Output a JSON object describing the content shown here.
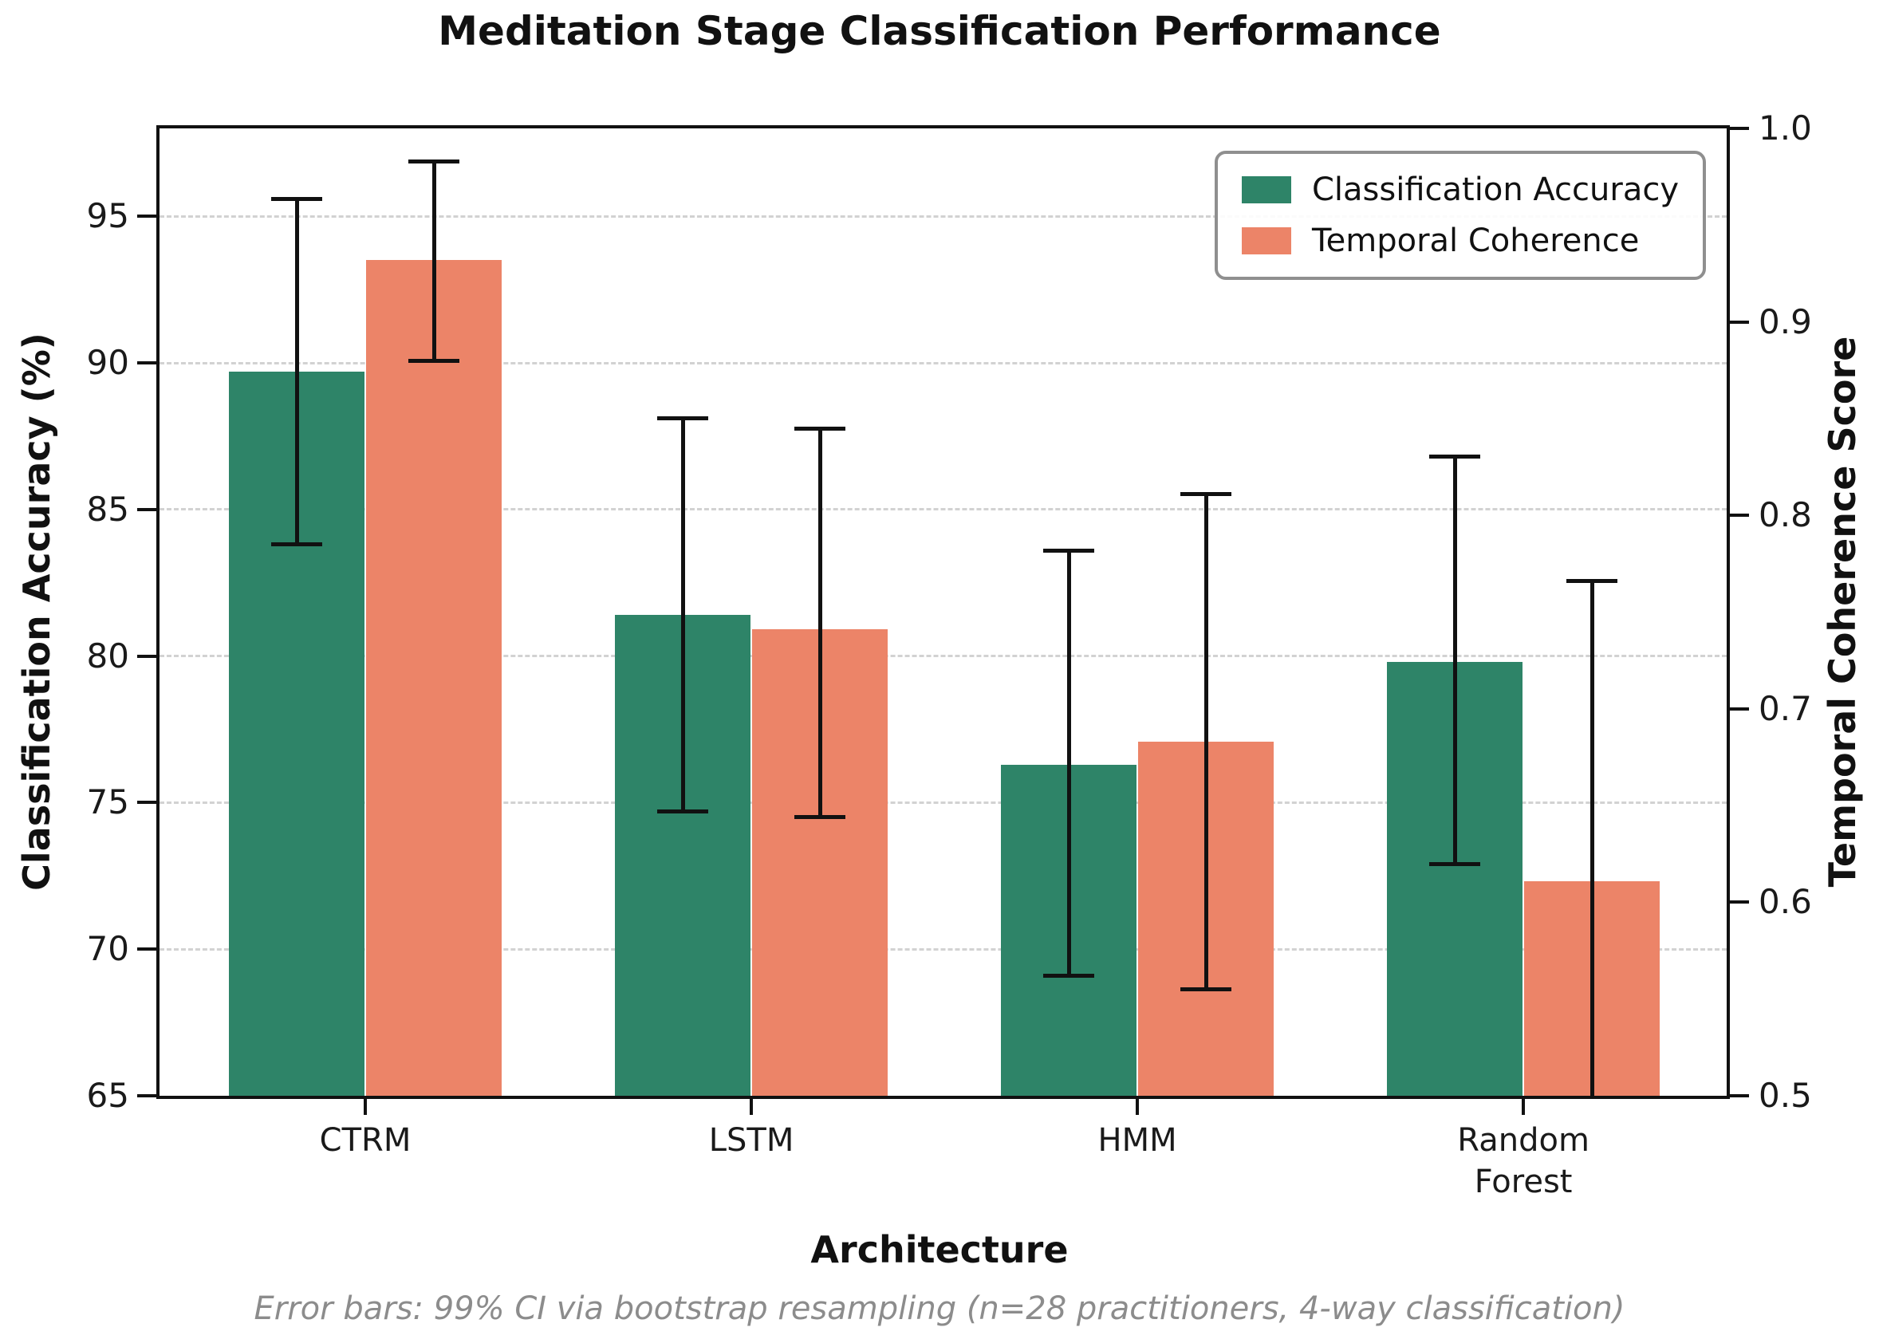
{
  "title": "Meditation Stage Classification Performance",
  "caption": "Error bars: 99% CI via bootstrap resampling (n=28 practitioners, 4-way classification)",
  "chart_data": {
    "type": "bar",
    "categories": [
      "CTRM",
      "LSTM",
      "HMM",
      "Random\nForest"
    ],
    "xlabel": "Architecture",
    "left_axis": {
      "label": "Classification Accuracy (%)",
      "ticks": [
        65,
        70,
        75,
        80,
        85,
        90,
        95
      ],
      "range": [
        65,
        98
      ]
    },
    "right_axis": {
      "label": "Temporal Coherence Score",
      "ticks": [
        "0.5",
        "0.6",
        "0.7",
        "0.8",
        "0.9",
        "1.0"
      ],
      "range": [
        0.5,
        1.0
      ]
    },
    "series": [
      {
        "name": "Classification Accuracy",
        "axis": "left",
        "color": "#2e8468",
        "values": [
          89.7,
          81.4,
          76.3,
          79.8
        ],
        "ci": [
          [
            83.8,
            95.6
          ],
          [
            74.7,
            88.1
          ],
          [
            69.1,
            83.6
          ],
          [
            72.9,
            86.8
          ]
        ]
      },
      {
        "name": "Temporal Coherence",
        "axis": "right",
        "color": "#ec8468",
        "values": [
          0.932,
          0.741,
          0.683,
          0.611
        ],
        "ci": [
          [
            0.88,
            0.983
          ],
          [
            0.644,
            0.845
          ],
          [
            0.555,
            0.811
          ],
          [
            0.456,
            0.766
          ]
        ]
      }
    ],
    "error_bar_color": "#111111",
    "grid": "horizontal-dashed",
    "legend_position": "top-right"
  }
}
